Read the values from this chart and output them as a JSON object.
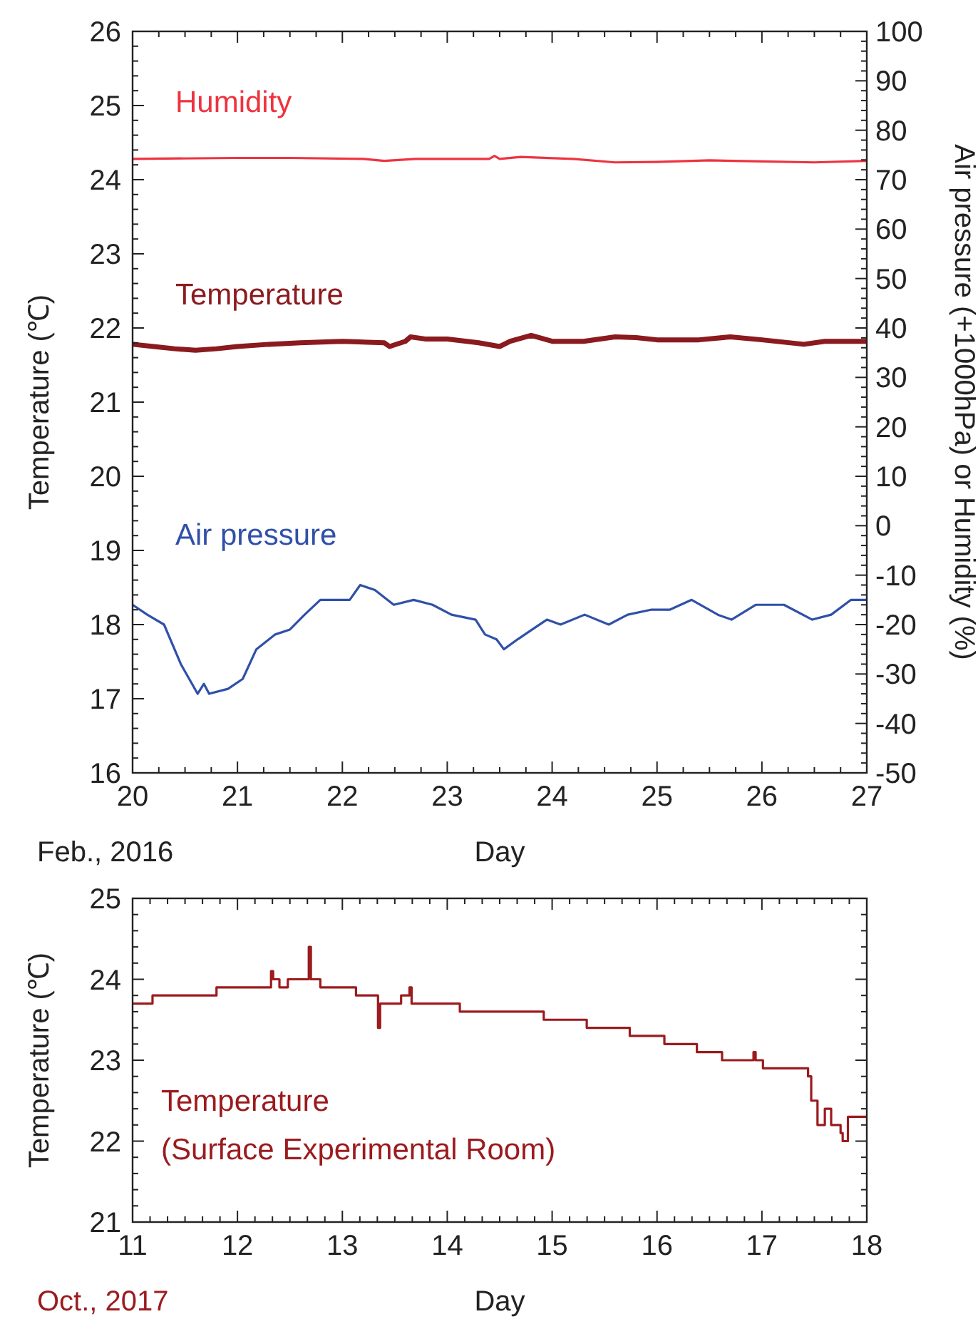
{
  "chart_data": [
    {
      "type": "line",
      "xlabel": "Day",
      "ylabel": "Temperature (℃)",
      "y2label": "Air pressure (+1000hPa) or Humidity (%)",
      "annotations": [
        "Feb., 2016"
      ],
      "xlim": [
        20,
        27
      ],
      "xticks": [
        20,
        21,
        22,
        23,
        24,
        25,
        26,
        27
      ],
      "ylim": [
        16,
        26
      ],
      "yticks": [
        16,
        17,
        18,
        19,
        20,
        21,
        22,
        23,
        24,
        25,
        26
      ],
      "y2lim": [
        -50,
        100
      ],
      "y2ticks": [
        -50,
        -40,
        -30,
        -20,
        -10,
        0,
        10,
        20,
        30,
        40,
        50,
        60,
        70,
        80,
        90,
        100
      ],
      "grid": false,
      "series": [
        {
          "name": "Humidity",
          "color": "#ee3340",
          "axis": "y2",
          "x": [
            20,
            21,
            21.5,
            22.2,
            22.4,
            22.7,
            23.4,
            23.45,
            23.5,
            23.7,
            24.2,
            24.6,
            25,
            25.5,
            26,
            26.5,
            27
          ],
          "values": [
            74.2,
            74.4,
            74.4,
            74.2,
            73.8,
            74.2,
            74.2,
            74.8,
            74.2,
            74.6,
            74.2,
            73.5,
            73.6,
            73.9,
            73.7,
            73.5,
            73.8
          ]
        },
        {
          "name": "Temperature",
          "color": "#8b1a1e",
          "x": [
            20,
            20.2,
            20.4,
            20.6,
            20.8,
            21,
            21.3,
            21.6,
            22,
            22.4,
            22.45,
            22.6,
            22.65,
            22.8,
            23,
            23.3,
            23.5,
            23.6,
            23.8,
            24,
            24.3,
            24.6,
            24.8,
            25,
            25.4,
            25.7,
            26,
            26.4,
            26.6,
            27
          ],
          "values": [
            21.78,
            21.75,
            21.72,
            21.7,
            21.72,
            21.75,
            21.78,
            21.8,
            21.82,
            21.8,
            21.75,
            21.82,
            21.88,
            21.85,
            21.85,
            21.8,
            21.75,
            21.82,
            21.9,
            21.82,
            21.82,
            21.88,
            21.87,
            21.84,
            21.84,
            21.88,
            21.84,
            21.78,
            21.82,
            21.82
          ]
        },
        {
          "name": "Air pressure",
          "color": "#3050a8",
          "axis": "y2",
          "x": [
            20,
            20.14,
            20.3,
            20.46,
            20.62,
            20.68,
            20.73,
            20.91,
            21.05,
            21.18,
            21.36,
            21.5,
            21.64,
            21.79,
            21.86,
            21.95,
            22.07,
            22.17,
            22.31,
            22.49,
            22.68,
            22.86,
            23.04,
            23.27,
            23.36,
            23.47,
            23.54,
            23.67,
            23.81,
            23.95,
            24.08,
            24.31,
            24.54,
            24.72,
            24.94,
            25.12,
            25.33,
            25.58,
            25.71,
            25.94,
            26.21,
            26.48,
            26.66,
            26.85,
            27
          ],
          "values": [
            -16,
            -18,
            -20,
            -28,
            -34,
            -32,
            -34,
            -33,
            -31,
            -25,
            -22,
            -21,
            -18,
            -15,
            -15,
            -15,
            -15,
            -12,
            -13,
            -16,
            -15,
            -16,
            -18,
            -19,
            -22,
            -23,
            -25,
            -23,
            -21,
            -19,
            -20,
            -18,
            -20,
            -18,
            -17,
            -17,
            -15,
            -18,
            -19,
            -16,
            -16,
            -19,
            -18,
            -15,
            -15
          ]
        }
      ]
    },
    {
      "type": "step",
      "xlabel": "Day",
      "ylabel": "Temperature (℃)",
      "annotations": [
        "Oct., 2017"
      ],
      "xlim": [
        11,
        18
      ],
      "xticks": [
        11,
        12,
        13,
        14,
        15,
        16,
        17,
        18
      ],
      "ylim": [
        21,
        25
      ],
      "yticks": [
        21,
        22,
        23,
        24,
        25
      ],
      "grid": false,
      "series": [
        {
          "name": "Temperature (Surface Experimental Room)",
          "color": "#9b1b1e",
          "x": [
            11,
            11.19,
            11.8,
            12.32,
            12.34,
            12.4,
            12.48,
            12.68,
            12.7,
            12.79,
            13.13,
            13.34,
            13.36,
            13.4,
            13.56,
            13.64,
            13.66,
            14.12,
            14.92,
            15.33,
            15.74,
            16.07,
            16.38,
            16.62,
            16.92,
            16.94,
            17.01,
            17.44,
            17.47,
            17.53,
            17.6,
            17.66,
            17.75,
            17.77,
            17.82,
            18
          ],
          "values": [
            23.7,
            23.8,
            23.9,
            24.1,
            24,
            23.9,
            24,
            24.4,
            24,
            23.9,
            23.8,
            23.4,
            23.7,
            23.7,
            23.8,
            23.9,
            23.7,
            23.6,
            23.5,
            23.4,
            23.3,
            23.2,
            23.1,
            23,
            23.1,
            23,
            22.9,
            22.8,
            22.5,
            22.2,
            22.4,
            22.2,
            22.1,
            22,
            22.3,
            22.3
          ]
        }
      ]
    }
  ]
}
